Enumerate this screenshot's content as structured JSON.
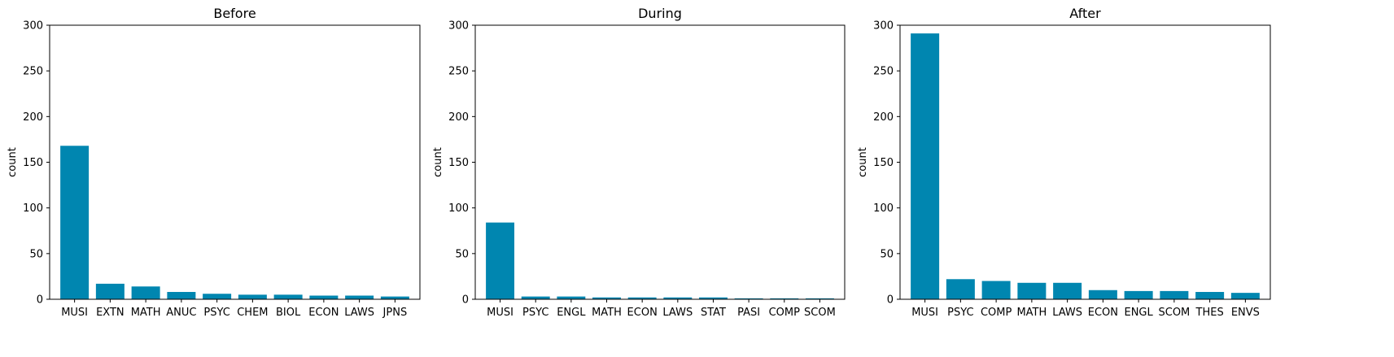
{
  "colors": {
    "bar": "#0086b0",
    "axis": "#000000",
    "background": "#ffffff"
  },
  "chart_data": [
    {
      "type": "bar",
      "title": "Before",
      "xlabel": "",
      "ylabel": "count",
      "ylim": [
        0,
        300
      ],
      "yticks": [
        "0",
        "50",
        "100",
        "150",
        "200",
        "250",
        "300"
      ],
      "categories": [
        "MUSI",
        "EXTN",
        "MATH",
        "ANUC",
        "PSYC",
        "CHEM",
        "BIOL",
        "ECON",
        "LAWS",
        "JPNS"
      ],
      "values": [
        168,
        17,
        14,
        8,
        6,
        5,
        5,
        4,
        4,
        3
      ]
    },
    {
      "type": "bar",
      "title": "During",
      "xlabel": "",
      "ylabel": "count",
      "ylim": [
        0,
        300
      ],
      "yticks": [
        "0",
        "50",
        "100",
        "150",
        "200",
        "250",
        "300"
      ],
      "categories": [
        "MUSI",
        "PSYC",
        "ENGL",
        "MATH",
        "ECON",
        "LAWS",
        "STAT",
        "PASI",
        "COMP",
        "SCOM"
      ],
      "values": [
        84,
        3,
        3,
        2,
        2,
        2,
        2,
        1,
        1,
        1
      ]
    },
    {
      "type": "bar",
      "title": "After",
      "xlabel": "",
      "ylabel": "count",
      "ylim": [
        0,
        300
      ],
      "yticks": [
        "0",
        "50",
        "100",
        "150",
        "200",
        "250",
        "300"
      ],
      "categories": [
        "MUSI",
        "PSYC",
        "COMP",
        "MATH",
        "LAWS",
        "ECON",
        "ENGL",
        "SCOM",
        "THES",
        "ENVS"
      ],
      "values": [
        291,
        22,
        20,
        18,
        18,
        10,
        9,
        9,
        8,
        7
      ]
    }
  ]
}
